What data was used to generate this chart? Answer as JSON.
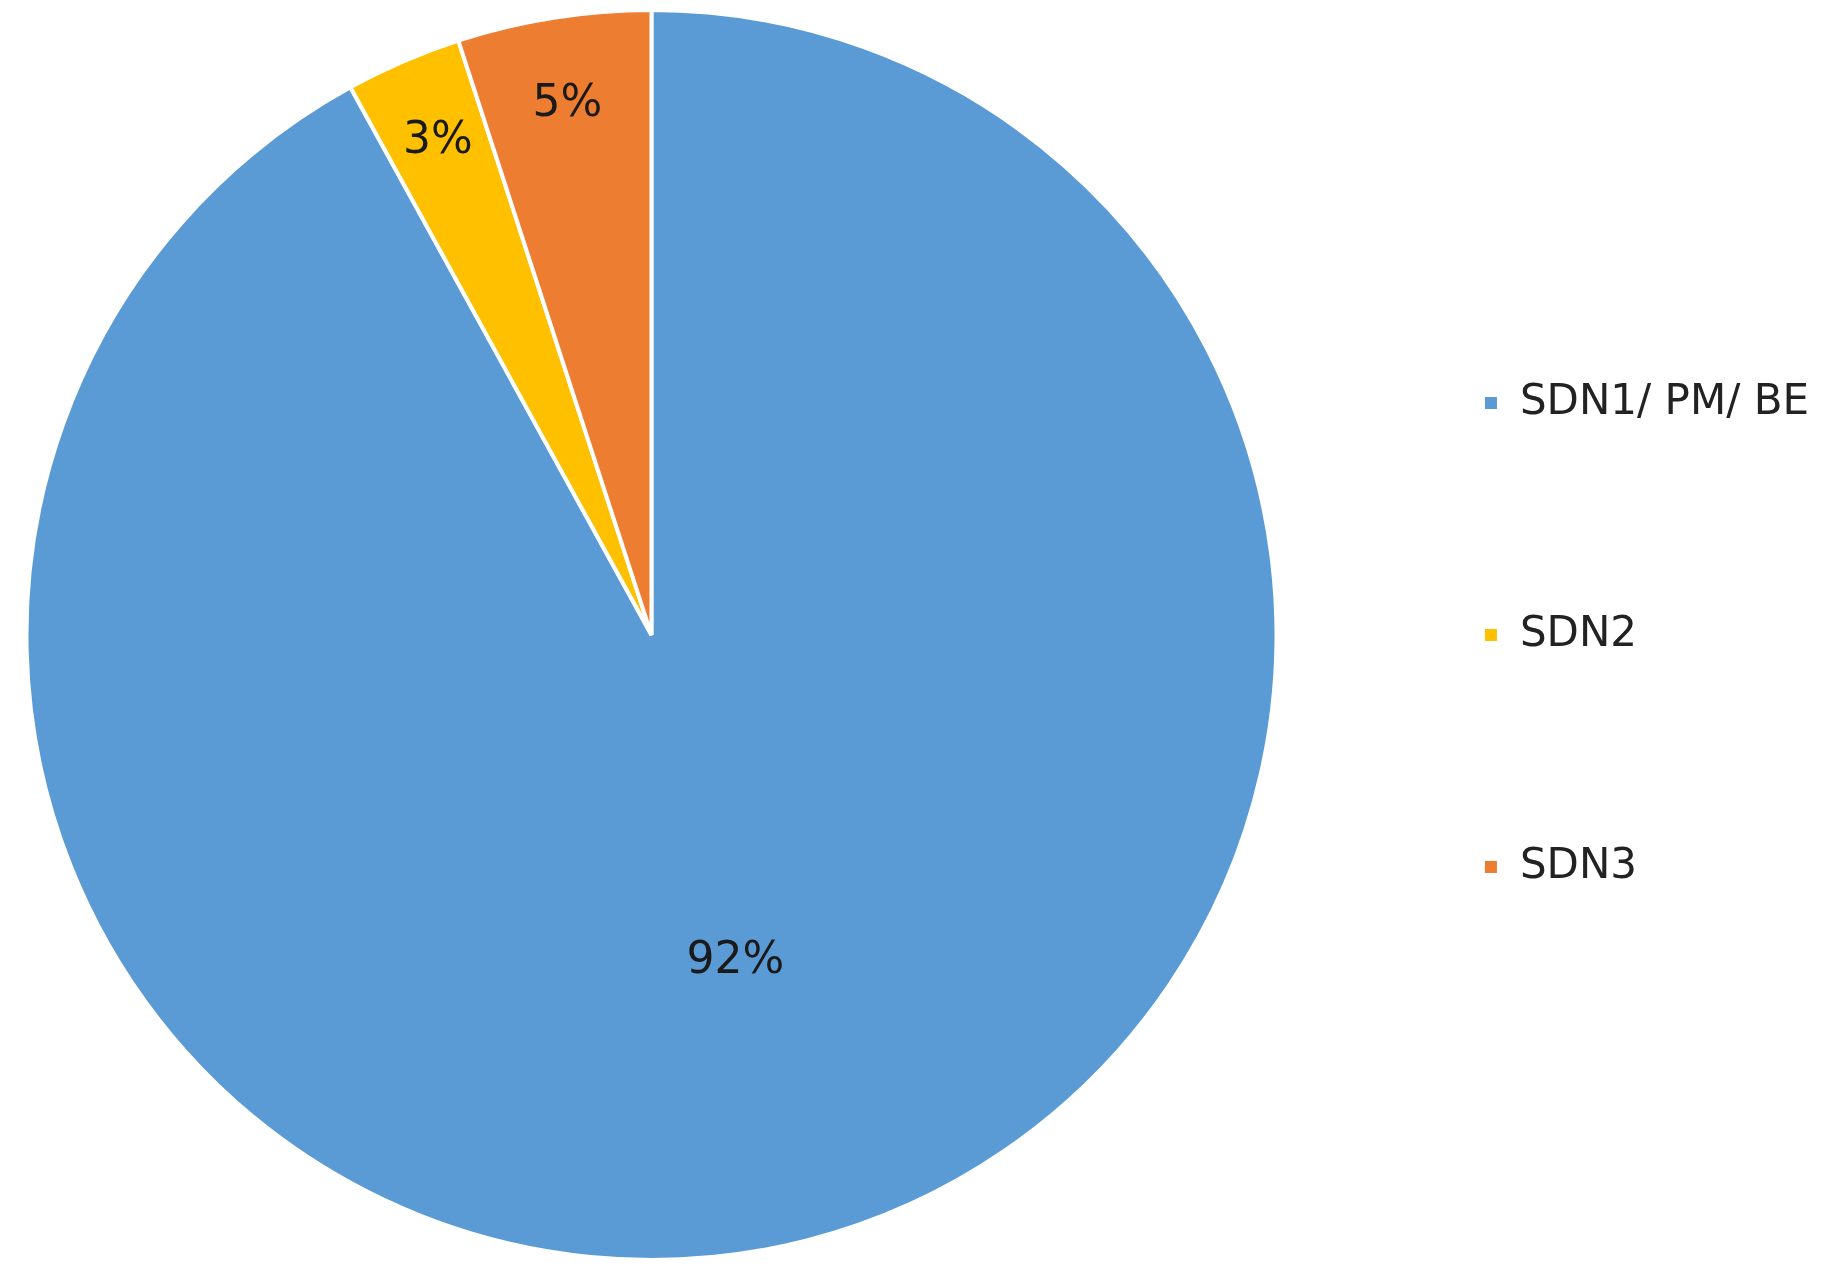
{
  "chart_data": {
    "type": "pie",
    "categories": [
      "SDN1/ PM/ BE",
      "SDN2",
      "SDN3"
    ],
    "values": [
      92,
      3,
      5
    ],
    "colors": [
      "#5b9bd5",
      "#ffc000",
      "#ed7d31"
    ],
    "value_labels": [
      "92%",
      "3%",
      "5%"
    ],
    "legend": "right"
  }
}
